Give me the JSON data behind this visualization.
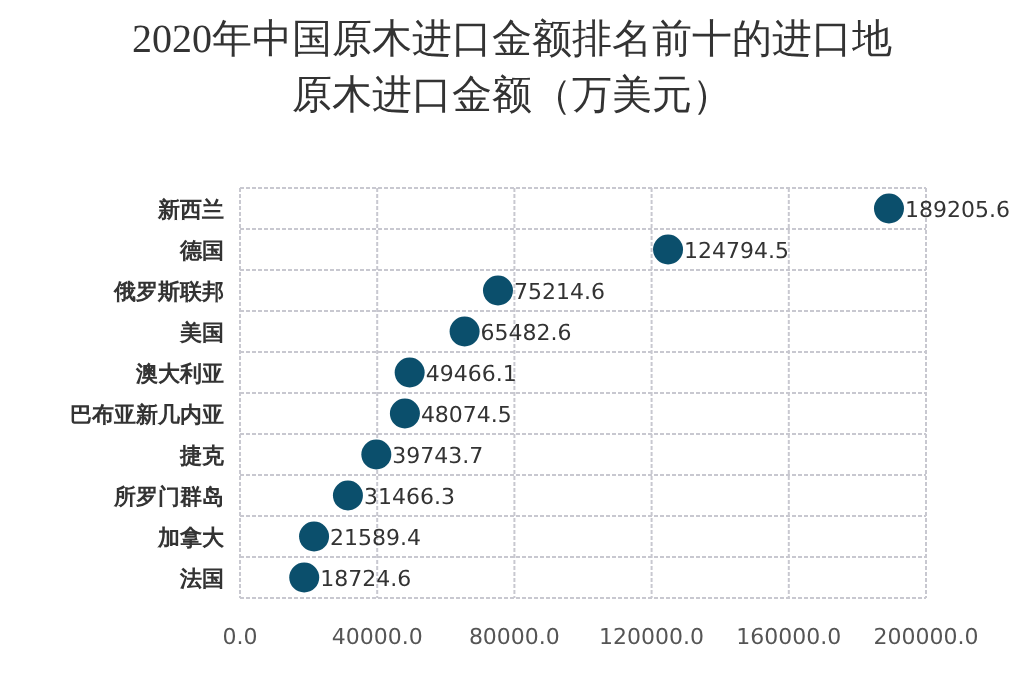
{
  "chart_data": {
    "type": "scatter",
    "orientation": "horizontal",
    "title": "2020年中国原木进口金额排名前十的进口地原木进口金额（万美元）",
    "categories": [
      "新西兰",
      "德国",
      "俄罗斯联邦",
      "美国",
      "澳大利亚",
      "巴布亚新几内亚",
      "捷克",
      "所罗门群岛",
      "加拿大",
      "法国"
    ],
    "values": [
      189205.6,
      124794.5,
      75214.6,
      65482.6,
      49466.1,
      48074.5,
      39743.7,
      31466.3,
      21589.4,
      18724.6
    ],
    "color": "#0b4f6c",
    "marker": "circle",
    "data_labels": true,
    "grid": true,
    "xlim": [
      0,
      200000
    ],
    "xticks": [
      {
        "value": 0,
        "label": "0.0"
      },
      {
        "value": 40000,
        "label": "40000.0"
      },
      {
        "value": 80000,
        "label": "80000.0"
      },
      {
        "value": 120000,
        "label": "120000.0"
      },
      {
        "value": 160000,
        "label": "160000.0"
      },
      {
        "value": 200000,
        "label": "200000.0"
      }
    ]
  }
}
